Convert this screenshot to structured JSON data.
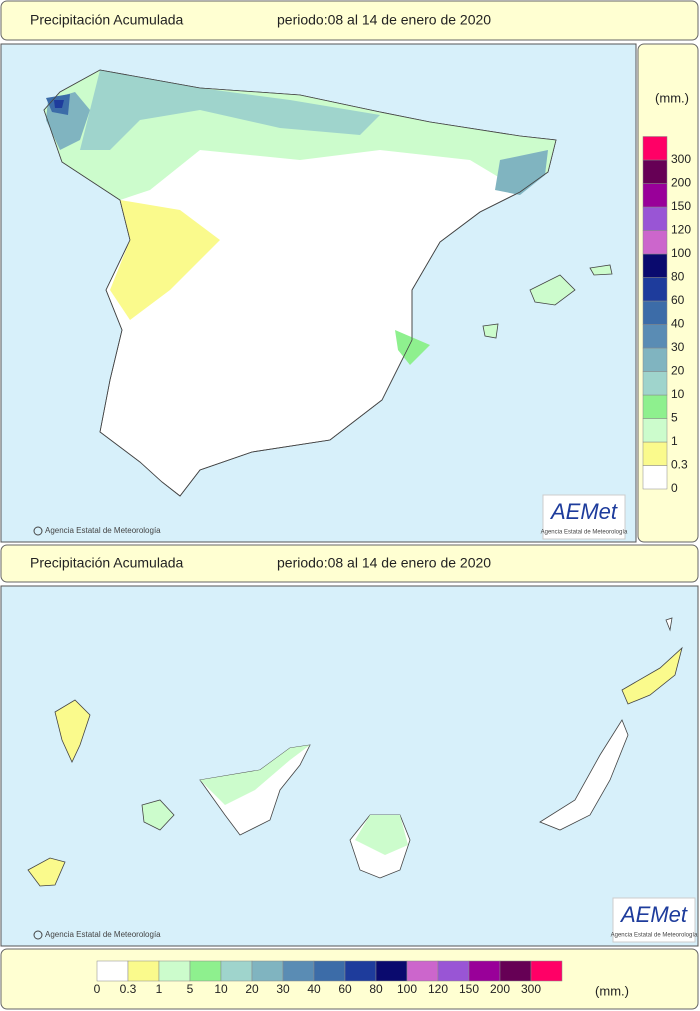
{
  "header": {
    "title": "Precipitación Acumulada",
    "period": "periodo:08 al 14 de enero de 2020"
  },
  "credit": "Agencia Estatal de Meteorología",
  "logo": {
    "name": "AEMet",
    "subtitle": "Agencia Estatal de Meteorología"
  },
  "legend": {
    "unit": "(mm.)",
    "items": [
      {
        "value": 0,
        "color": "#ffffff"
      },
      {
        "value": 0.3,
        "color": "#fafa8c"
      },
      {
        "value": 1,
        "color": "#ccfccc"
      },
      {
        "value": 5,
        "color": "#8ef08e"
      },
      {
        "value": 10,
        "color": "#9fd4cc"
      },
      {
        "value": 20,
        "color": "#80b4c0"
      },
      {
        "value": 30,
        "color": "#5a8cb4"
      },
      {
        "value": 40,
        "color": "#3c6ca8"
      },
      {
        "value": 60,
        "color": "#1e3c9c"
      },
      {
        "value": 80,
        "color": "#0a0a6e"
      },
      {
        "value": 100,
        "color": "#cc66cc"
      },
      {
        "value": 120,
        "color": "#9955d5"
      },
      {
        "value": 150,
        "color": "#990099"
      },
      {
        "value": 200,
        "color": "#660055"
      },
      {
        "value": 300,
        "color": "#ff0066"
      }
    ]
  }
}
